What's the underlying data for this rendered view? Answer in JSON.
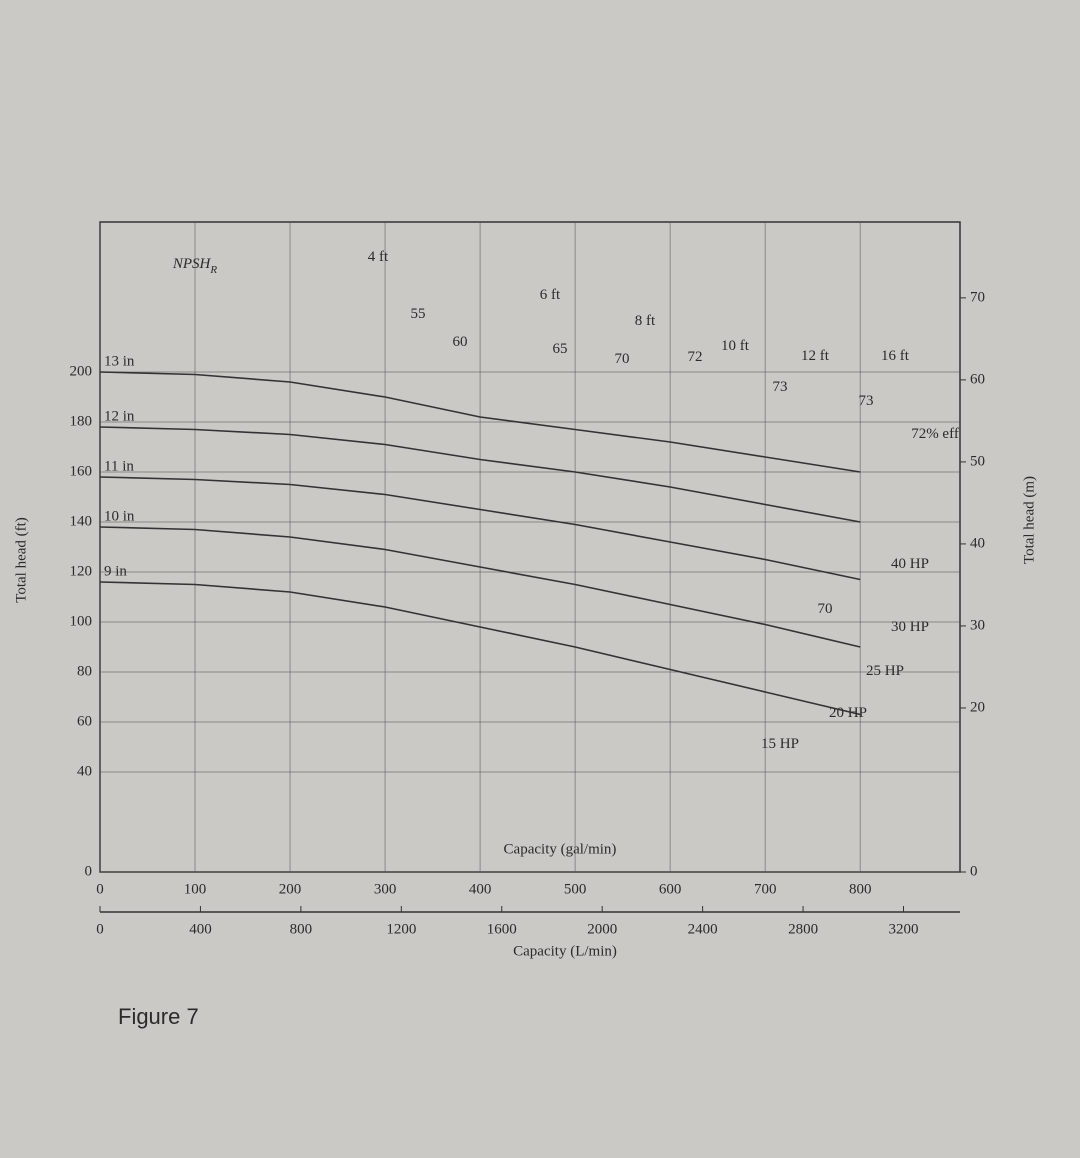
{
  "chart_data": {
    "type": "line",
    "caption": "Figure 7",
    "x_label": "Capacity (gal/min)",
    "x2_label": "Capacity (L/min)",
    "y_label": "Total head (ft)",
    "y2_label": "Total head (m)",
    "x": [
      0,
      100,
      200,
      300,
      400,
      500,
      600,
      700,
      800
    ],
    "series": [
      {
        "name": "13 in",
        "color": "#333333",
        "values": [
          200,
          199,
          196,
          190,
          182,
          177,
          172,
          166,
          160
        ]
      },
      {
        "name": "12 in",
        "color": "#333333",
        "values": [
          178,
          177,
          175,
          171,
          165,
          160,
          154,
          147,
          140
        ]
      },
      {
        "name": "11 in",
        "color": "#333333",
        "values": [
          158,
          157,
          155,
          151,
          145,
          139,
          132,
          125,
          117
        ]
      },
      {
        "name": "10 in",
        "color": "#333333",
        "values": [
          138,
          137,
          134,
          129,
          122,
          115,
          107,
          99,
          90
        ]
      },
      {
        "name": "9 in",
        "color": "#333333",
        "values": [
          116,
          115,
          112,
          106,
          98,
          90,
          81,
          72,
          63
        ]
      }
    ],
    "xlim": [
      0,
      905
    ],
    "xticks": [
      0,
      100,
      200,
      300,
      400,
      500,
      600,
      700,
      800
    ],
    "x2lim": [
      0,
      3425
    ],
    "x2ticks": [
      0,
      400,
      800,
      1200,
      1600,
      2000,
      2400,
      2800,
      3200
    ],
    "ylim": [
      0,
      260
    ],
    "yticks": [
      0,
      40,
      60,
      80,
      100,
      120,
      140,
      160,
      180,
      200
    ],
    "y2lim": [
      0,
      79.25
    ],
    "y2ticks": [
      0,
      20,
      30,
      40,
      50,
      60,
      70
    ],
    "grid": true,
    "annotations": [
      {
        "text": "NPSH",
        "subscript": "R"
      },
      {
        "text": "4 ft"
      },
      {
        "text": "6 ft"
      },
      {
        "text": "8 ft"
      },
      {
        "text": "10 ft"
      },
      {
        "text": "12 ft"
      },
      {
        "text": "16 ft"
      },
      {
        "text": "55"
      },
      {
        "text": "60"
      },
      {
        "text": "65"
      },
      {
        "text": "70"
      },
      {
        "text": "72"
      },
      {
        "text": "73"
      },
      {
        "text": "73"
      },
      {
        "text": "72% eff"
      },
      {
        "text": "70"
      },
      {
        "text": "40 HP"
      },
      {
        "text": "30 HP"
      },
      {
        "text": "25 HP"
      },
      {
        "text": "20 HP"
      },
      {
        "text": "15 HP"
      }
    ]
  }
}
